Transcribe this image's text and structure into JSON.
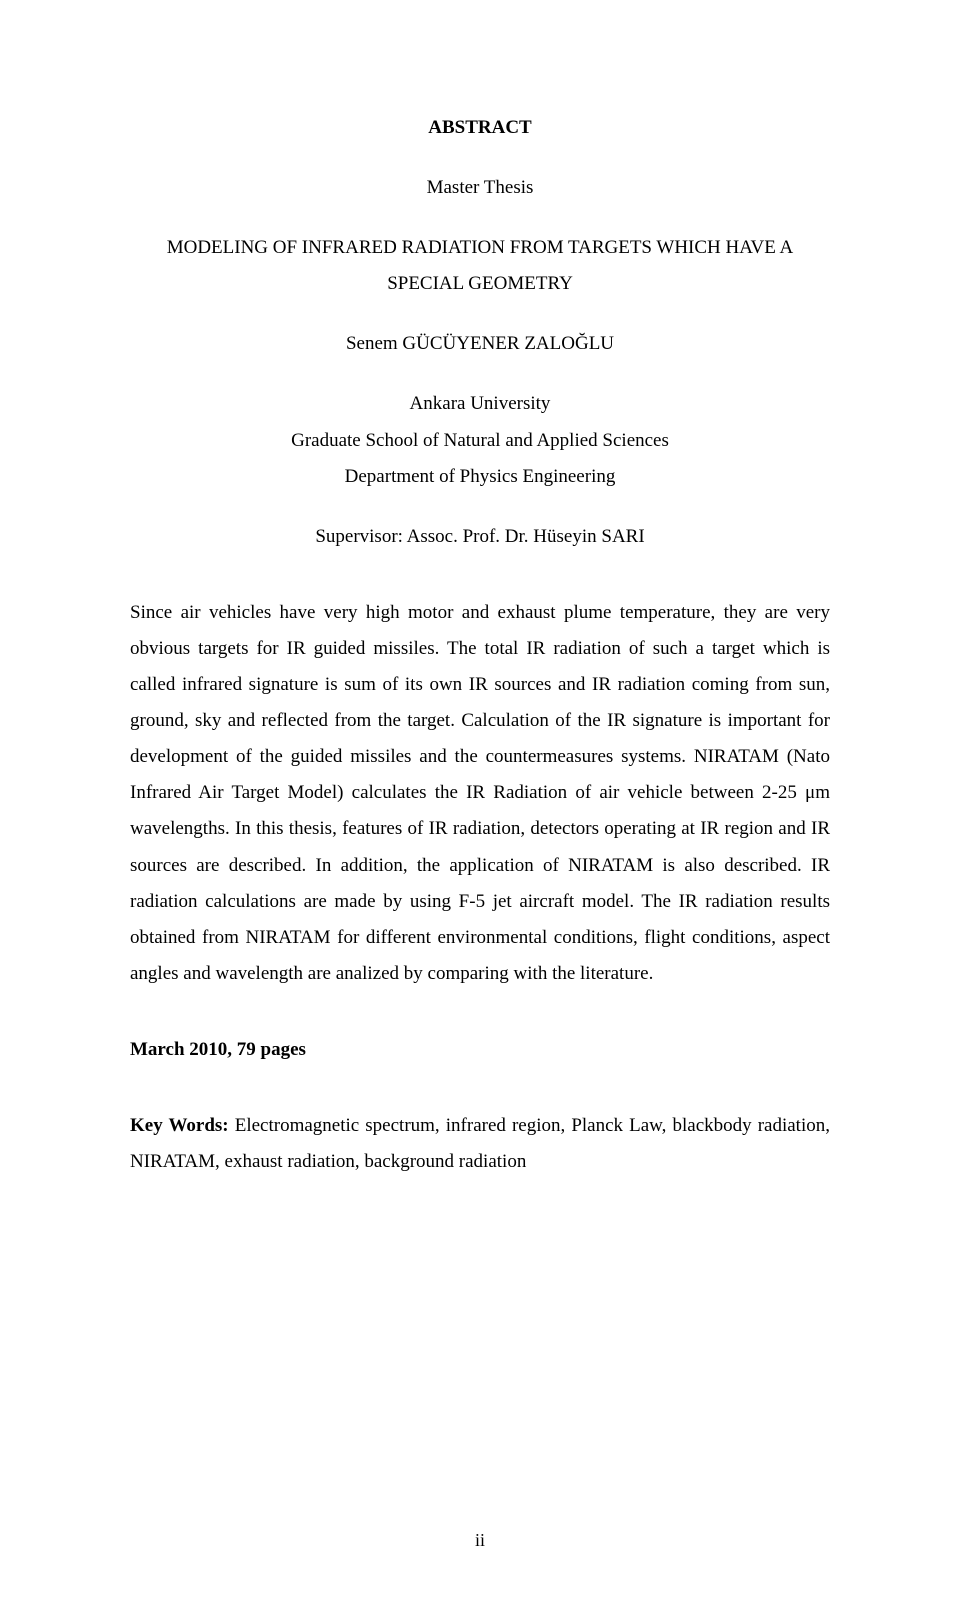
{
  "abstract": {
    "header": "ABSTRACT",
    "thesis_type": "Master Thesis",
    "title_line1": "MODELING OF INFRARED RADIATION FROM TARGETS WHICH HAVE A",
    "title_line2": "SPECIAL GEOMETRY",
    "author": "Senem GÜCÜYENER ZALOĞLU",
    "affiliation_line1": "Ankara University",
    "affiliation_line2": "Graduate School of Natural and Applied Sciences",
    "affiliation_line3": "Department of Physics Engineering",
    "supervisor": "Supervisor: Assoc. Prof. Dr. Hüseyin SARI",
    "body": "Since air vehicles have very high motor and exhaust plume temperature, they are very obvious targets for IR guided missiles. The total IR radiation of such a target which is called infrared signature is sum of its own IR sources and IR radiation coming from sun, ground, sky and reflected from the target. Calculation of the IR signature is important for development of the guided missiles and the countermeasures systems. NIRATAM (Nato Infrared Air Target Model) calculates the IR Radiation of air vehicle between 2-25 μm wavelengths. In this thesis, features of IR radiation, detectors operating at IR region and IR sources are described. In addition, the application of NIRATAM is also described. IR radiation calculations are made by using F-5 jet aircraft model. The IR radiation results obtained from NIRATAM for different environmental conditions, flight conditions, aspect angles and wavelength are analized by comparing with the literature.",
    "date_pages": "March 2010, 79 pages",
    "keywords_label": "Key Words:",
    "keywords_text": " Electromagnetic spectrum, infrared region, Planck Law, blackbody radiation, NIRATAM, exhaust radiation, background radiation",
    "page_number": "ii"
  }
}
